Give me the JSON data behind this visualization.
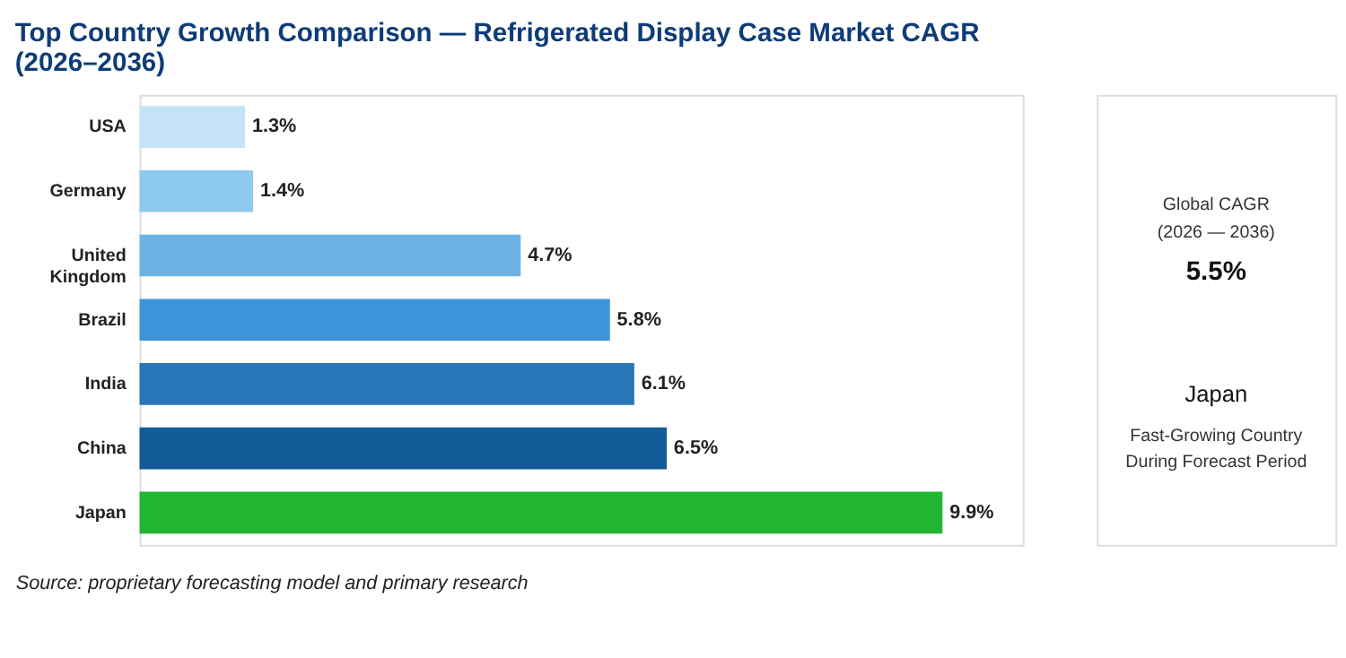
{
  "chart_data": {
    "type": "bar",
    "orientation": "horizontal",
    "title": "Top Country Growth Comparison — Refrigerated Display Case Market CAGR (2026–2036)",
    "categories": [
      "USA",
      "Germany",
      "United Kingdom",
      "Brazil",
      "India",
      "China",
      "Japan"
    ],
    "values": [
      1.3,
      1.4,
      4.7,
      5.8,
      6.1,
      6.5,
      9.9
    ],
    "colors": [
      "#c5e3f6",
      "#8ec9ee",
      "#6cb4e4",
      "#3b95d8",
      "#2977b9",
      "#135b98",
      "#22b532"
    ],
    "value_labels": [
      "1.3%",
      "1.4%",
      "4.7%",
      "5.8%",
      "6.1%",
      "6.5%",
      "9.9%"
    ],
    "annotations": [
      "Global CAGR",
      "(2026 — 2036)",
      "5.5%",
      "Japan",
      "Fast-Growing Country",
      "During Forecast Period",
      "Source: proprietary forecasting model and primary research"
    ]
  }
}
